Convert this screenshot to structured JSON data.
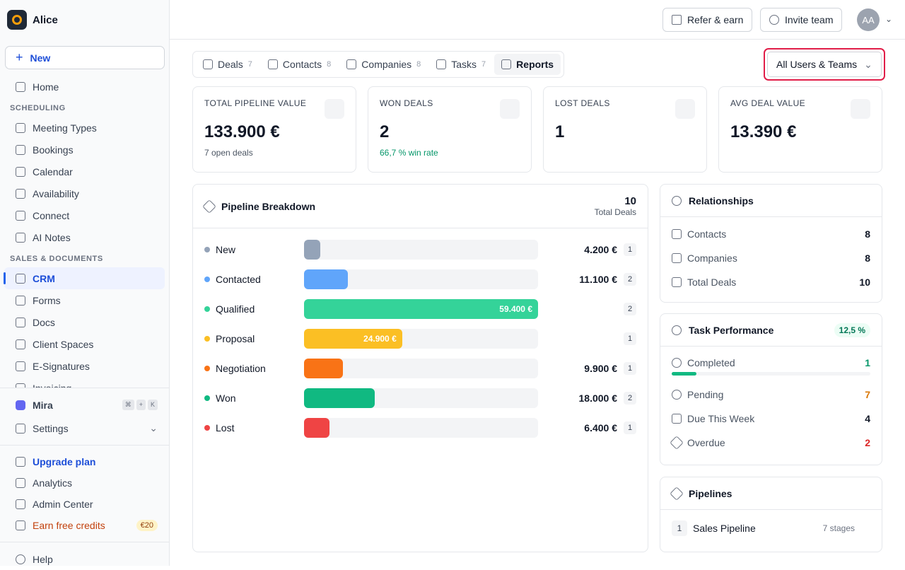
{
  "sidebar": {
    "workspace": "Alice",
    "new_button": "New",
    "home": "Home",
    "sections": [
      {
        "title": "SCHEDULING",
        "items": [
          "Meeting Types",
          "Bookings",
          "Calendar",
          "Availability",
          "Connect",
          "AI Notes"
        ]
      },
      {
        "title": "SALES & DOCUMENTS",
        "items": [
          "CRM",
          "Forms",
          "Docs",
          "Client Spaces",
          "E-Signatures",
          "Invoicing"
        ]
      }
    ],
    "active": "CRM",
    "mira": "Mira",
    "shortcut": [
      "⌘",
      "+",
      "K"
    ],
    "settings": "Settings",
    "upgrade": "Upgrade plan",
    "analytics": "Analytics",
    "admin": "Admin Center",
    "credits": "Earn free credits",
    "credits_badge": "€20",
    "help": "Help"
  },
  "topbar": {
    "refer": "Refer & earn",
    "invite": "Invite team",
    "avatar": "AA"
  },
  "tabs": [
    {
      "label": "Deals",
      "count": 7
    },
    {
      "label": "Contacts",
      "count": 8
    },
    {
      "label": "Companies",
      "count": 8
    },
    {
      "label": "Tasks",
      "count": 7
    },
    {
      "label": "Reports"
    }
  ],
  "filter": "All Users & Teams",
  "stats": [
    {
      "label": "TOTAL PIPELINE VALUE",
      "value": "133.900 €",
      "note": "7 open deals"
    },
    {
      "label": "WON DEALS",
      "value": 2,
      "note": "66,7 % win rate"
    },
    {
      "label": "LOST DEALS",
      "value": 1
    },
    {
      "label": "AVG DEAL VALUE",
      "value": "13.390 €"
    }
  ],
  "pipeline": {
    "title": "Pipeline Breakdown",
    "total": 10,
    "total_label": "Total Deals",
    "stages": [
      {
        "name": "New",
        "color": "#94a3b8",
        "amount": 4200,
        "amount_label": "4.200 €",
        "count": 1
      },
      {
        "name": "Contacted",
        "color": "#60a5fa",
        "amount": 11100,
        "amount_label": "11.100 €",
        "count": 2
      },
      {
        "name": "Qualified",
        "color": "#34d399",
        "amount": 59400,
        "amount_label": "59.400 €",
        "count": 2
      },
      {
        "name": "Proposal",
        "color": "#fbbf24",
        "amount": 24900,
        "amount_label": "24.900 €",
        "count": 1
      },
      {
        "name": "Negotiation",
        "color": "#f97316",
        "amount": 9900,
        "amount_label": "9.900 €",
        "count": 1
      },
      {
        "name": "Won",
        "color": "#10b981",
        "amount": 18000,
        "amount_label": "18.000 €",
        "count": 2
      },
      {
        "name": "Lost",
        "color": "#ef4444",
        "amount": 6400,
        "amount_label": "6.400 €",
        "count": 1
      }
    ]
  },
  "relationships": {
    "title": "Relationships",
    "rows": [
      {
        "label": "Contacts",
        "value": 8
      },
      {
        "label": "Companies",
        "value": 8
      },
      {
        "label": "Total Deals",
        "value": 10
      }
    ]
  },
  "tasks": {
    "title": "Task Performance",
    "rate": "12,5 %",
    "completed": {
      "label": "Completed",
      "value": 1
    },
    "pending": {
      "label": "Pending",
      "value": 7
    },
    "due": {
      "label": "Due This Week",
      "value": 4
    },
    "overdue": {
      "label": "Overdue",
      "value": 2
    }
  },
  "pipelines": {
    "title": "Pipelines",
    "items": [
      {
        "index": 1,
        "name": "Sales Pipeline",
        "stages": "7 stages"
      }
    ]
  }
}
